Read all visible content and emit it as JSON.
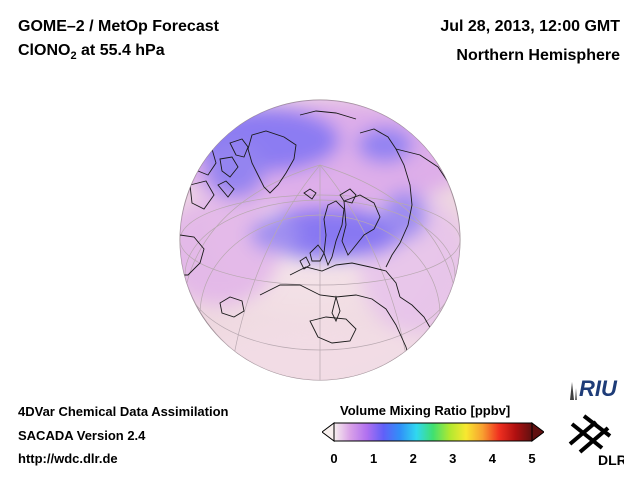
{
  "header": {
    "title_line1": "GOME–2 / MetOp Forecast",
    "species_main": "ClONO",
    "species_sub": "2",
    "species_rest": " at 55.4 hPa",
    "date": "Jul 28, 2013, 12:00 GMT",
    "region": "Northern Hemisphere"
  },
  "footer": {
    "line1": "4DVar Chemical Data Assimilation",
    "line2": "SACADA Version 2.4",
    "line3": "http://wdc.dlr.de"
  },
  "colorbar": {
    "title": "Volume Mixing Ratio [ppbv]",
    "ticks": [
      "0",
      "1",
      "2",
      "3",
      "4",
      "5"
    ],
    "range": [
      0,
      5
    ],
    "colors": [
      "#f8f0ee",
      "#d8a0e8",
      "#b070f0",
      "#6060f8",
      "#3090f8",
      "#30d8f0",
      "#40e070",
      "#b0e830",
      "#f8e830",
      "#f8a030",
      "#f03020",
      "#b01010",
      "#601010"
    ]
  },
  "logos": {
    "riu": "RIU",
    "dlr": "DLR"
  },
  "map": {
    "projection": "orthographic",
    "view": "north-polar",
    "colors": {
      "background": "#f4e2e6",
      "low": "#8a78f2",
      "mid": "#d9a3e9",
      "coast": "#1a1a1a",
      "grid": "#b8a8b0"
    }
  }
}
